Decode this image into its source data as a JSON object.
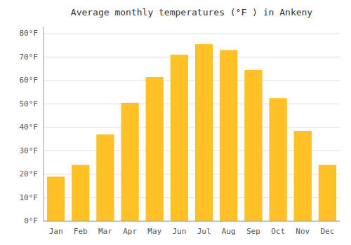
{
  "chart_data": {
    "type": "bar",
    "title": "Average monthly temperatures (°F ) in Ankeny",
    "categories": [
      "Jan",
      "Feb",
      "Mar",
      "Apr",
      "May",
      "Jun",
      "Jul",
      "Aug",
      "Sep",
      "Oct",
      "Nov",
      "Dec"
    ],
    "values": [
      19,
      24,
      37,
      50.5,
      61.5,
      71,
      75.5,
      73,
      64.5,
      52.5,
      38.5,
      24
    ],
    "color": "#FFC125",
    "ylim": [
      0,
      83
    ],
    "yticks": [
      {
        "value": 0,
        "label": "0°F"
      },
      {
        "value": 10,
        "label": "10°F"
      },
      {
        "value": 20,
        "label": "20°F"
      },
      {
        "value": 30,
        "label": "30°F"
      },
      {
        "value": 40,
        "label": "40°F"
      },
      {
        "value": 50,
        "label": "50°F"
      },
      {
        "value": 60,
        "label": "60°F"
      },
      {
        "value": 70,
        "label": "70°F"
      },
      {
        "value": 80,
        "label": "80°F"
      }
    ],
    "grid": true
  }
}
